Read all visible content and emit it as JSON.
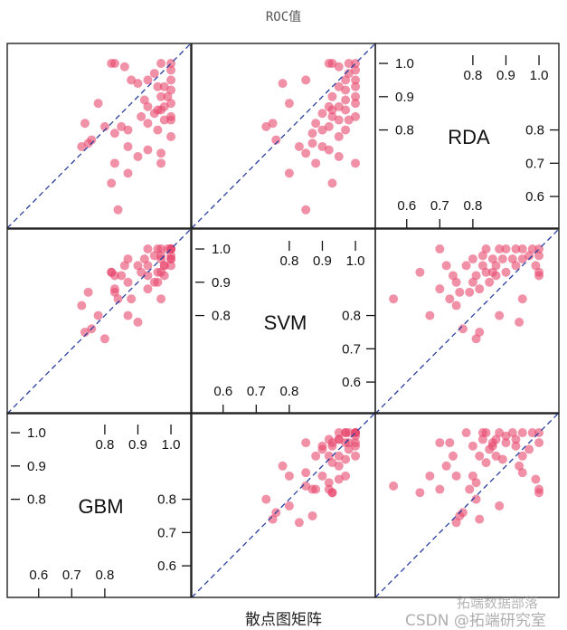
{
  "chart_data": {
    "type": "scatter",
    "subtype": "scatterplot-matrix",
    "title": "ROC值",
    "xlabel": "散点图矩阵",
    "variables": [
      "GBM",
      "SVM",
      "RDA"
    ],
    "axis_range": [
      0.505,
      1.06
    ],
    "ticks_upper": [
      "0.8",
      "0.9",
      "1.0"
    ],
    "ticks_lower": [
      "0.6",
      "0.7",
      "0.8"
    ],
    "reference_line": "y = x (dashed)",
    "grid": false,
    "point_color": "#e8486e",
    "line_color": "#2a3f9e",
    "points_fields": [
      "RDA",
      "SVM",
      "GBM"
    ],
    "points": [
      [
        1.0,
        1.0,
        1.0
      ],
      [
        1.0,
        0.98,
        0.97
      ],
      [
        0.98,
        1.0,
        1.0
      ],
      [
        0.95,
        0.97,
        1.0
      ],
      [
        0.93,
        0.95,
        0.98
      ],
      [
        0.92,
        0.97,
        1.0
      ],
      [
        0.9,
        0.93,
        0.97
      ],
      [
        0.88,
        1.0,
        1.0
      ],
      [
        0.87,
        0.95,
        0.93
      ],
      [
        0.87,
        0.92,
        0.98
      ],
      [
        0.86,
        0.97,
        0.97
      ],
      [
        0.85,
        0.9,
        0.95
      ],
      [
        0.84,
        0.93,
        0.91
      ],
      [
        0.84,
        1.0,
        1.0
      ],
      [
        0.83,
        0.95,
        0.98
      ],
      [
        0.82,
        0.88,
        0.93
      ],
      [
        0.81,
        0.92,
        0.85
      ],
      [
        0.8,
        0.9,
        0.96
      ],
      [
        0.8,
        0.97,
        0.87
      ],
      [
        0.79,
        0.87,
        0.83
      ],
      [
        0.78,
        0.95,
        1.0
      ],
      [
        0.76,
        0.87,
        0.75
      ],
      [
        0.75,
        0.83,
        0.73
      ],
      [
        0.75,
        0.9,
        0.87
      ],
      [
        0.74,
        0.92,
        0.93
      ],
      [
        0.73,
        0.85,
        0.97
      ],
      [
        0.72,
        0.95,
        0.9
      ],
      [
        0.7,
        0.88,
        0.83
      ],
      [
        0.7,
        1.0,
        0.97
      ],
      [
        0.67,
        0.8,
        0.87
      ],
      [
        0.64,
        0.93,
        0.82
      ],
      [
        0.56,
        0.85,
        0.84
      ],
      [
        1.0,
        0.93,
        0.82
      ],
      [
        1.0,
        0.92,
        0.83
      ],
      [
        0.99,
        0.95,
        0.86
      ],
      [
        0.95,
        0.85,
        0.88
      ],
      [
        0.94,
        0.78,
        0.9
      ],
      [
        0.88,
        0.8,
        0.78
      ],
      [
        0.82,
        0.75,
        0.74
      ],
      [
        0.81,
        0.73,
        0.8
      ],
      [
        0.77,
        0.76,
        0.76
      ],
      [
        0.95,
        1.0,
        0.93
      ],
      [
        0.97,
        0.98,
        0.95
      ],
      [
        0.9,
        1.0,
        0.99
      ],
      [
        0.86,
        0.93,
        0.96
      ],
      [
        0.89,
        0.97,
        0.92
      ],
      [
        0.93,
        1.0,
        0.96
      ],
      [
        0.83,
        0.98,
        1.0
      ]
    ]
  },
  "watermark": {
    "line1": "拓端数据部落",
    "line2": "CSDN @拓端研究室"
  }
}
